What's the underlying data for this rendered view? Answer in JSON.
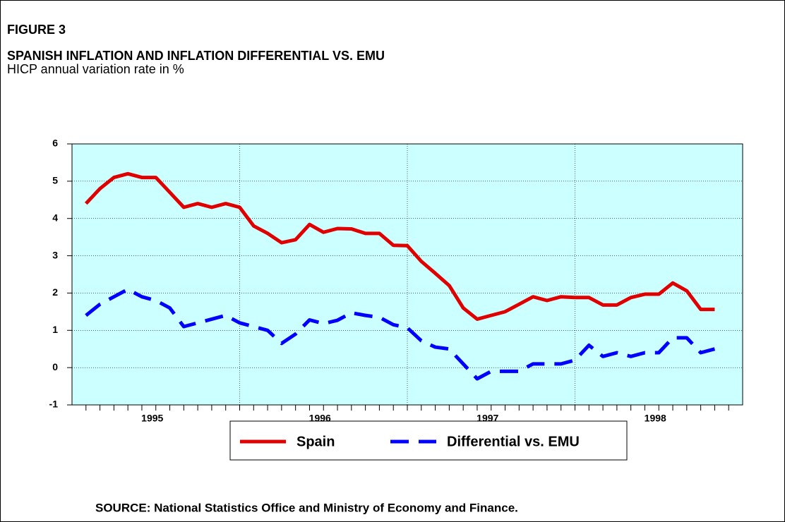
{
  "figure_label": "FIGURE 3",
  "chart_data": {
    "type": "line",
    "title": "SPANISH INFLATION AND INFLATION DIFFERENTIAL VS. EMU",
    "subtitle": "HICP annual variation rate in %",
    "source": "SOURCE: National Statistics Office and Ministry of Economy and Finance.",
    "x_groups": [
      "1995",
      "1996",
      "1997",
      "1998"
    ],
    "categories": [
      null,
      null,
      null,
      null,
      null,
      null,
      null,
      null,
      null,
      null,
      null,
      null,
      null,
      null,
      null,
      null,
      null,
      null,
      null,
      null,
      null,
      null,
      null,
      null,
      null,
      null,
      null,
      null,
      null,
      null,
      null,
      null,
      null,
      null,
      null,
      null,
      null,
      null,
      null,
      null,
      null,
      null,
      null,
      null,
      null,
      null,
      null,
      null
    ],
    "series": [
      {
        "name": "Spain",
        "color": "#e00000",
        "dash": false,
        "values": [
          null,
          4.4,
          4.8,
          5.1,
          5.2,
          5.1,
          5.1,
          4.7,
          4.3,
          4.4,
          4.3,
          4.4,
          4.3,
          3.8,
          3.6,
          3.35,
          3.43,
          3.84,
          3.63,
          3.73,
          3.72,
          3.6,
          3.6,
          3.28,
          3.27,
          2.85,
          2.53,
          2.2,
          1.6,
          1.3,
          1.4,
          1.5,
          1.7,
          1.9,
          1.8,
          1.9,
          1.88,
          1.88,
          1.68,
          1.68,
          1.88,
          1.97,
          1.97,
          2.27,
          2.06,
          1.56,
          1.56,
          null
        ]
      },
      {
        "name": "Differential vs. EMU",
        "color": "#0000ff",
        "dash": true,
        "values": [
          null,
          1.4,
          1.7,
          1.9,
          2.1,
          1.9,
          1.8,
          1.6,
          1.1,
          1.2,
          1.3,
          1.4,
          1.2,
          1.1,
          1.0,
          0.65,
          0.9,
          1.28,
          1.18,
          1.27,
          1.47,
          1.4,
          1.35,
          1.15,
          1.07,
          0.72,
          0.55,
          0.5,
          0.1,
          -0.3,
          -0.1,
          -0.1,
          -0.1,
          0.1,
          0.1,
          0.1,
          0.2,
          0.6,
          0.3,
          0.4,
          0.3,
          0.4,
          0.4,
          0.8,
          0.8,
          0.4,
          0.5,
          null
        ]
      }
    ],
    "ylim": [
      -1,
      6
    ],
    "yticks": [
      -1,
      0,
      1,
      2,
      3,
      4,
      5,
      6
    ],
    "grid": true,
    "background": "#ccffff"
  }
}
